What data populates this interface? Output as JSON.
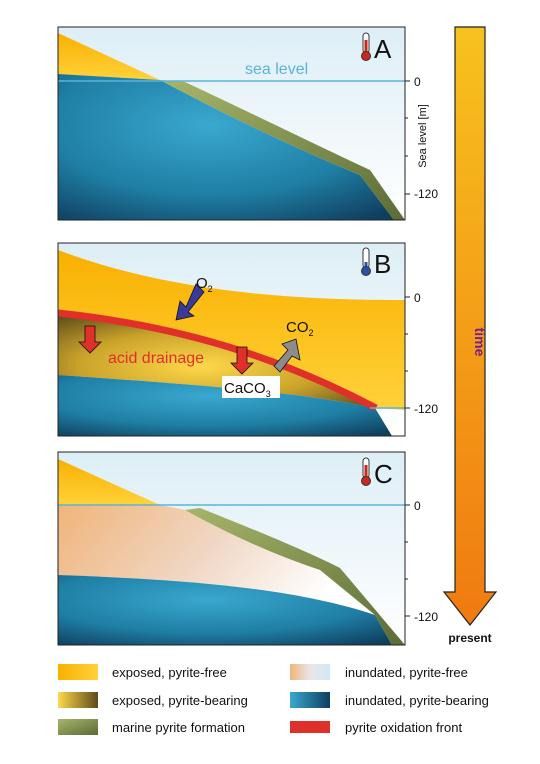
{
  "panels": [
    {
      "letter": "A",
      "thermo": "hot-thermometer",
      "sea_level_label": "sea level",
      "ticks": [
        "0",
        "-120"
      ],
      "axis_label": "Sea level [m]"
    },
    {
      "letter": "B",
      "thermo": "cold-thermometer",
      "ticks": [
        "0",
        "-120"
      ],
      "labels": {
        "o2_main": "O",
        "o2_sub": "2",
        "co2_main": "CO",
        "co2_sub": "2",
        "acid": "acid drainage",
        "caco3_main": "CaCO",
        "caco3_sub": "3"
      }
    },
    {
      "letter": "C",
      "thermo": "hot-thermometer",
      "ticks": [
        "0",
        "-120"
      ]
    }
  ],
  "time_arrow": {
    "label": "time",
    "end_label": "present"
  },
  "legend": [
    {
      "label": "exposed, pyrite-free"
    },
    {
      "label": "inundated, pyrite-free"
    },
    {
      "label": "exposed, pyrite-bearing"
    },
    {
      "label": "inundated, pyrite-bearing"
    },
    {
      "label": "marine pyrite formation"
    },
    {
      "label": "pyrite oxidation front"
    }
  ],
  "colors": {
    "sea_line": "#5ab4d6",
    "pyrite_front": "#e0302a",
    "time_arrow_top": "#f7c21e",
    "time_arrow_bottom": "#f07a10",
    "o2_arrow": "#3b3a98",
    "co2_arrow": "#8c8c8c"
  }
}
